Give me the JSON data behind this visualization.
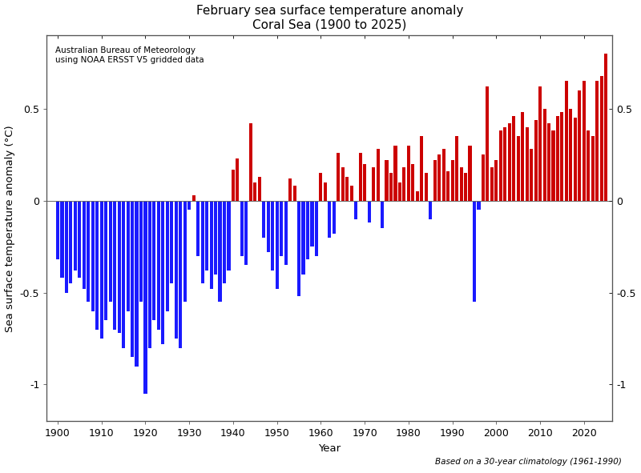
{
  "title": "February sea surface temperature anomaly\nCoral Sea (1900 to 2025)",
  "xlabel": "Year",
  "ylabel": "Sea surface temperature anomaly (°C)",
  "annotation": "Australian Bureau of Meteorology\nusing NOAA ERSST V5 gridded data",
  "footnote": "Based on a 30-year climatology (1961-1990)",
  "years": [
    1900,
    1901,
    1902,
    1903,
    1904,
    1905,
    1906,
    1907,
    1908,
    1909,
    1910,
    1911,
    1912,
    1913,
    1914,
    1915,
    1916,
    1917,
    1918,
    1919,
    1920,
    1921,
    1922,
    1923,
    1924,
    1925,
    1926,
    1927,
    1928,
    1929,
    1930,
    1931,
    1932,
    1933,
    1934,
    1935,
    1936,
    1937,
    1938,
    1939,
    1940,
    1941,
    1942,
    1943,
    1944,
    1945,
    1946,
    1947,
    1948,
    1949,
    1950,
    1951,
    1952,
    1953,
    1954,
    1955,
    1956,
    1957,
    1958,
    1959,
    1960,
    1961,
    1962,
    1963,
    1964,
    1965,
    1966,
    1967,
    1968,
    1969,
    1970,
    1971,
    1972,
    1973,
    1974,
    1975,
    1976,
    1977,
    1978,
    1979,
    1980,
    1981,
    1982,
    1983,
    1984,
    1985,
    1986,
    1987,
    1988,
    1989,
    1990,
    1991,
    1992,
    1993,
    1994,
    1995,
    1996,
    1997,
    1998,
    1999,
    2000,
    2001,
    2002,
    2003,
    2004,
    2005,
    2006,
    2007,
    2008,
    2009,
    2010,
    2011,
    2012,
    2013,
    2014,
    2015,
    2016,
    2017,
    2018,
    2019,
    2020,
    2021,
    2022,
    2023,
    2024,
    2025
  ],
  "values": [
    -0.32,
    -0.42,
    -0.5,
    -0.45,
    -0.38,
    -0.42,
    -0.48,
    -0.55,
    -0.6,
    -0.7,
    -0.75,
    -0.65,
    -0.55,
    -0.7,
    -0.72,
    -0.8,
    -0.6,
    -0.85,
    -0.9,
    -0.55,
    -1.05,
    -0.8,
    -0.65,
    -0.7,
    -0.78,
    -0.6,
    -0.45,
    -0.75,
    -0.8,
    -0.55,
    -0.05,
    0.03,
    -0.3,
    -0.45,
    -0.38,
    -0.48,
    -0.4,
    -0.55,
    -0.45,
    -0.38,
    0.17,
    0.23,
    -0.3,
    -0.35,
    0.42,
    0.1,
    0.13,
    -0.2,
    -0.28,
    -0.38,
    -0.48,
    -0.3,
    -0.35,
    0.12,
    0.08,
    -0.52,
    -0.4,
    -0.32,
    -0.25,
    -0.3,
    0.15,
    0.1,
    -0.2,
    -0.18,
    0.26,
    0.18,
    0.13,
    0.08,
    -0.1,
    0.26,
    0.2,
    -0.12,
    0.18,
    0.28,
    -0.15,
    0.22,
    0.15,
    0.3,
    0.1,
    0.18,
    0.3,
    0.2,
    0.05,
    0.35,
    0.15,
    -0.1,
    0.22,
    0.25,
    0.28,
    0.16,
    0.22,
    0.35,
    0.18,
    0.15,
    0.3,
    -0.55,
    -0.05,
    0.25,
    0.62,
    0.18,
    0.22,
    0.38,
    0.4,
    0.42,
    0.46,
    0.35,
    0.48,
    0.4,
    0.28,
    0.44,
    0.62,
    0.5,
    0.42,
    0.38,
    0.46,
    0.48,
    0.65,
    0.5,
    0.45,
    0.6,
    0.65,
    0.38,
    0.35,
    0.65,
    0.68,
    0.8
  ],
  "color_positive": "#cc0000",
  "color_negative": "#1a1aff",
  "ylim": [
    -1.2,
    0.9
  ],
  "yticks": [
    -1.0,
    -0.5,
    0,
    0.5
  ],
  "xticks": [
    1900,
    1910,
    1920,
    1930,
    1940,
    1950,
    1960,
    1970,
    1980,
    1990,
    2000,
    2010,
    2020
  ],
  "title_fontsize": 11,
  "label_fontsize": 9.5,
  "tick_fontsize": 9,
  "annotation_fontsize": 7.5,
  "footnote_fontsize": 7.5
}
